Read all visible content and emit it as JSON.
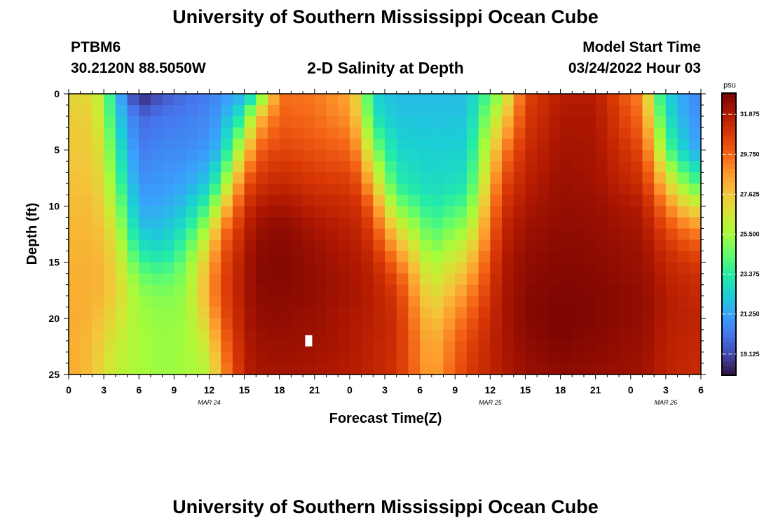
{
  "header": {
    "title_top": "University of Southern Mississippi Ocean Cube",
    "title_bottom": "University of Southern Mississippi Ocean Cube",
    "station_id": "PTBM6",
    "station_coords": "30.2120N  88.5050W",
    "plot_title": "2-D Salinity at Depth",
    "model_start_label": "Model Start Time",
    "model_start_value": "03/24/2022 Hour 03"
  },
  "chart_data": {
    "type": "heatmap",
    "title": "2-D Salinity at Depth",
    "xlabel": "Forecast Time(Z)",
    "ylabel": "Depth (ft)",
    "x_range_hours": [
      0,
      54
    ],
    "y_range": [
      0,
      25
    ],
    "x_tick_labels": [
      "0",
      "3",
      "6",
      "9",
      "12",
      "15",
      "18",
      "21",
      "0",
      "3",
      "6",
      "9",
      "12",
      "15",
      "18",
      "21",
      "0",
      "3",
      "6"
    ],
    "y_ticks": [
      0,
      5,
      10,
      15,
      20,
      25
    ],
    "date_labels": [
      {
        "text": "MAR 24",
        "hour": 12
      },
      {
        "text": "MAR 25",
        "hour": 36
      },
      {
        "text": "MAR 26",
        "hour": 51
      }
    ],
    "colorbar": {
      "unit": "psu",
      "min": 18.0,
      "max": 33.0,
      "ticks": [
        19.125,
        21.25,
        23.375,
        25.5,
        27.625,
        29.75,
        31.875
      ],
      "tick_labels": [
        "19.125",
        "21.250",
        "23.375",
        "25.500",
        "27.625",
        "29.750",
        "31.875"
      ],
      "colors": [
        "#30123b",
        "#4145ab",
        "#4675ed",
        "#39a2fc",
        "#1bcfd4",
        "#24eca6",
        "#61fc6c",
        "#a4fc3b",
        "#d1e834",
        "#f3c63a",
        "#fe9b2d",
        "#f36315",
        "#d93806",
        "#b11901",
        "#7a0402"
      ]
    },
    "grid": {
      "cols": 54,
      "rows": 25,
      "time_step_hours": 1,
      "depth_step_ft": 1,
      "anomaly": {
        "hour": 20.5,
        "depth_from": 21.5,
        "depth_to": 22.5,
        "value": "missing"
      },
      "keyframes": [
        {
          "hour": 0,
          "depths": [
            0,
            2,
            5,
            8,
            10,
            12,
            14,
            16,
            18,
            20,
            22,
            25
          ],
          "salinity": [
            27.2,
            27.4,
            27.6,
            27.8,
            27.9,
            28.0,
            28.1,
            28.2,
            28.2,
            28.3,
            28.3,
            28.3
          ]
        },
        {
          "hour": 2,
          "depths": [
            0,
            2,
            5,
            8,
            10,
            12,
            14,
            16,
            18,
            20,
            22,
            25
          ],
          "salinity": [
            27.0,
            27.3,
            27.5,
            27.7,
            27.9,
            28.0,
            28.1,
            28.2,
            28.2,
            28.1,
            27.9,
            27.8
          ]
        },
        {
          "hour": 3,
          "depths": [
            0,
            2,
            5,
            8,
            10,
            12,
            14,
            16,
            18,
            20,
            22,
            25
          ],
          "salinity": [
            25.5,
            25.8,
            26.3,
            26.8,
            27.2,
            27.6,
            27.9,
            28.0,
            27.9,
            27.6,
            27.2,
            26.9
          ]
        },
        {
          "hour": 4,
          "depths": [
            0,
            2,
            5,
            8,
            10,
            12,
            14,
            16,
            18,
            20,
            22,
            25
          ],
          "salinity": [
            22.0,
            22.5,
            23.5,
            24.5,
            25.5,
            26.2,
            26.9,
            27.3,
            27.3,
            26.9,
            26.5,
            26.2
          ]
        },
        {
          "hour": 6,
          "depths": [
            0,
            2,
            5,
            8,
            10,
            12,
            14,
            16,
            18,
            20,
            22,
            25
          ],
          "salinity": [
            18.2,
            19.8,
            20.3,
            20.8,
            21.3,
            22.0,
            23.2,
            24.5,
            25.3,
            25.5,
            25.6,
            25.6
          ]
        },
        {
          "hour": 8,
          "depths": [
            0,
            2,
            5,
            8,
            10,
            12,
            14,
            16,
            18,
            20,
            22,
            25
          ],
          "salinity": [
            19.4,
            20.2,
            20.6,
            21.0,
            21.4,
            21.9,
            22.7,
            24.0,
            24.9,
            25.2,
            25.3,
            25.3
          ]
        },
        {
          "hour": 10,
          "depths": [
            0,
            2,
            5,
            8,
            10,
            12,
            14,
            16,
            18,
            20,
            22,
            25
          ],
          "salinity": [
            20.0,
            20.3,
            20.7,
            21.3,
            22.0,
            23.0,
            24.2,
            25.0,
            25.3,
            25.4,
            25.5,
            25.5
          ]
        },
        {
          "hour": 12,
          "depths": [
            0,
            2,
            5,
            8,
            10,
            12,
            14,
            16,
            18,
            20,
            22,
            25
          ],
          "salinity": [
            20.3,
            20.6,
            21.0,
            22.2,
            24.0,
            26.0,
            27.5,
            28.4,
            28.5,
            27.8,
            26.8,
            26.0
          ]
        },
        {
          "hour": 13,
          "depths": [
            0,
            2,
            5,
            8,
            10,
            12,
            14,
            16,
            18,
            20,
            22,
            25
          ],
          "salinity": [
            20.8,
            21.2,
            22.0,
            24.5,
            27.0,
            29.0,
            30.0,
            30.3,
            30.3,
            30.0,
            29.4,
            28.6
          ]
        },
        {
          "hour": 15,
          "depths": [
            0,
            2,
            5,
            8,
            10,
            12,
            14,
            16,
            18,
            20,
            22,
            25
          ],
          "salinity": [
            21.5,
            23.5,
            27.0,
            30.0,
            31.0,
            31.5,
            31.8,
            32.0,
            32.0,
            31.9,
            31.8,
            31.7
          ]
        },
        {
          "hour": 16,
          "depths": [
            0,
            2,
            5,
            8,
            10,
            12,
            14,
            16,
            18,
            20,
            22,
            25
          ],
          "salinity": [
            23.0,
            27.5,
            29.8,
            31.0,
            31.8,
            32.3,
            32.6,
            32.7,
            32.6,
            32.5,
            32.3,
            32.1
          ]
        },
        {
          "hour": 18,
          "depths": [
            0,
            2,
            5,
            8,
            10,
            12,
            14,
            16,
            18,
            20,
            22,
            25
          ],
          "salinity": [
            29.6,
            29.9,
            30.6,
            31.5,
            32.2,
            32.7,
            32.8,
            32.8,
            32.7,
            32.6,
            32.4,
            32.2
          ]
        },
        {
          "hour": 21,
          "depths": [
            0,
            2,
            5,
            8,
            10,
            12,
            14,
            16,
            18,
            20,
            22,
            25
          ],
          "salinity": [
            29.4,
            29.6,
            30.2,
            31.0,
            31.6,
            32.1,
            32.4,
            32.5,
            32.5,
            32.4,
            32.3,
            32.1
          ]
        },
        {
          "hour": 24,
          "depths": [
            0,
            2,
            5,
            8,
            10,
            12,
            14,
            16,
            18,
            20,
            22,
            25
          ],
          "salinity": [
            28.4,
            28.8,
            29.8,
            30.8,
            31.3,
            31.7,
            31.9,
            32.1,
            32.1,
            32.0,
            32.0,
            31.8
          ]
        },
        {
          "hour": 25,
          "depths": [
            0,
            2,
            5,
            8,
            10,
            12,
            14,
            16,
            18,
            20,
            22,
            25
          ],
          "salinity": [
            26.2,
            26.8,
            28.5,
            30.2,
            31.0,
            31.4,
            31.7,
            31.9,
            32.0,
            31.9,
            31.8,
            31.7
          ]
        },
        {
          "hour": 26,
          "depths": [
            0,
            2,
            5,
            8,
            10,
            12,
            14,
            16,
            18,
            20,
            22,
            25
          ],
          "salinity": [
            22.5,
            23.0,
            25.2,
            27.5,
            29.5,
            30.5,
            31.2,
            31.6,
            31.7,
            31.7,
            31.6,
            31.5
          ]
        },
        {
          "hour": 28,
          "depths": [
            0,
            2,
            5,
            8,
            10,
            12,
            14,
            16,
            18,
            20,
            22,
            25
          ],
          "salinity": [
            21.8,
            22.0,
            22.5,
            23.4,
            25.0,
            27.0,
            28.8,
            30.2,
            31.0,
            31.2,
            31.2,
            31.1
          ]
        },
        {
          "hour": 31,
          "depths": [
            0,
            2,
            5,
            8,
            10,
            12,
            14,
            16,
            18,
            20,
            22,
            25
          ],
          "salinity": [
            21.8,
            22.0,
            22.3,
            22.6,
            23.2,
            24.0,
            25.0,
            26.0,
            26.8,
            27.5,
            28.0,
            28.4
          ]
        },
        {
          "hour": 34,
          "depths": [
            0,
            2,
            5,
            8,
            10,
            12,
            14,
            16,
            18,
            20,
            22,
            25
          ],
          "salinity": [
            21.9,
            22.0,
            22.4,
            23.0,
            24.2,
            25.5,
            26.8,
            28.0,
            29.0,
            29.8,
            30.4,
            30.8
          ]
        },
        {
          "hour": 37,
          "depths": [
            0,
            2,
            5,
            8,
            10,
            12,
            14,
            16,
            18,
            20,
            22,
            25
          ],
          "salinity": [
            25.5,
            27.0,
            29.0,
            30.4,
            31.0,
            31.4,
            31.7,
            31.9,
            32.0,
            32.0,
            32.0,
            31.9
          ]
        },
        {
          "hour": 39,
          "depths": [
            0,
            2,
            5,
            8,
            10,
            12,
            14,
            16,
            18,
            20,
            22,
            25
          ],
          "salinity": [
            30.5,
            30.8,
            31.3,
            31.7,
            32.0,
            32.3,
            32.5,
            32.6,
            32.7,
            32.7,
            32.6,
            32.4
          ]
        },
        {
          "hour": 42,
          "depths": [
            0,
            2,
            5,
            8,
            10,
            12,
            14,
            16,
            18,
            20,
            22,
            25
          ],
          "salinity": [
            31.8,
            32.0,
            32.2,
            32.4,
            32.5,
            32.6,
            32.7,
            32.8,
            32.9,
            33.0,
            32.9,
            32.6
          ]
        },
        {
          "hour": 45,
          "depths": [
            0,
            2,
            5,
            8,
            10,
            12,
            14,
            16,
            18,
            20,
            22,
            25
          ],
          "salinity": [
            31.8,
            32.0,
            32.1,
            32.2,
            32.4,
            32.5,
            32.6,
            32.7,
            32.8,
            32.8,
            32.7,
            32.5
          ]
        },
        {
          "hour": 49,
          "depths": [
            0,
            2,
            5,
            8,
            10,
            12,
            14,
            16,
            18,
            20,
            22,
            25
          ],
          "salinity": [
            29.0,
            29.5,
            30.4,
            31.2,
            31.8,
            32.1,
            32.3,
            32.4,
            32.5,
            32.5,
            32.4,
            32.3
          ]
        },
        {
          "hour": 50,
          "depths": [
            0,
            2,
            5,
            8,
            10,
            12,
            14,
            16,
            18,
            20,
            22,
            25
          ],
          "salinity": [
            25.0,
            26.0,
            27.8,
            29.5,
            30.6,
            31.3,
            31.8,
            32.1,
            32.2,
            32.2,
            32.1,
            32.0
          ]
        },
        {
          "hour": 51,
          "depths": [
            0,
            2,
            5,
            8,
            10,
            12,
            14,
            16,
            18,
            20,
            22,
            25
          ],
          "salinity": [
            22.5,
            23.0,
            24.5,
            27.5,
            29.3,
            30.5,
            31.2,
            31.6,
            31.8,
            31.8,
            31.7,
            31.6
          ]
        },
        {
          "hour": 53,
          "depths": [
            0,
            2,
            5,
            8,
            10,
            12,
            14,
            16,
            18,
            20,
            22,
            25
          ],
          "salinity": [
            20.8,
            21.0,
            21.6,
            24.5,
            27.0,
            29.2,
            30.5,
            31.2,
            31.5,
            31.6,
            31.5,
            31.4
          ]
        },
        {
          "hour": 54,
          "depths": [
            0,
            2,
            5,
            8,
            10,
            12,
            14,
            16,
            18,
            20,
            22,
            25
          ],
          "salinity": [
            20.6,
            20.8,
            21.4,
            24.0,
            26.7,
            29.0,
            30.4,
            31.1,
            31.4,
            31.5,
            31.4,
            31.3
          ]
        }
      ]
    }
  }
}
